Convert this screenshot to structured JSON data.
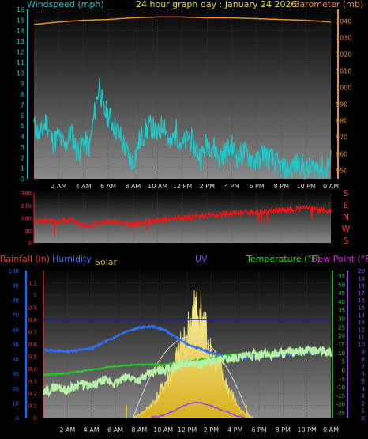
{
  "header": {
    "windspeed_label": "Windspeed (mph)",
    "title": "24 hour graph day : January 24 2026",
    "barometer_label": "Barometer (mb)"
  },
  "bottom_header": {
    "rainfall_label": "Rainfall (in)",
    "humidity_label": "Humidity",
    "solar_label": "Solar",
    "uv_label": "UV",
    "temperature_label": "Temperature (°F)",
    "dewpoint_label": "Dew Point (°F)"
  },
  "compass": [
    "S",
    "E",
    "N",
    "W",
    "S"
  ],
  "colors": {
    "wind": "#1ec8c8",
    "barometer": "#e8902a",
    "direction": "#ff1010",
    "humidity": "#3070ff",
    "rain": "#2020a0",
    "temperature": "#20d020",
    "dewpoint": "#d020d0",
    "solar": "#f0e070",
    "uv": "#9040ff",
    "wind_axis": "#00c8c8",
    "rain_axis": "#2060ff",
    "temp_axis": "#20e020",
    "uv_axis": "#a040ff"
  },
  "chart_data": [
    {
      "type": "line",
      "name_key": "wind-barometer",
      "x_ticks": [
        "2 AM",
        "4 AM",
        "6 AM",
        "8 AM",
        "10 AM",
        "12 PM",
        "2 PM",
        "4 PM",
        "6 PM",
        "8 PM",
        "10 PM",
        "0 AM"
      ],
      "y_left_ticks": [
        "0",
        "1",
        "2",
        "3",
        "4",
        "5",
        "6",
        "7",
        "8",
        "9",
        "10",
        "11",
        "12",
        "13",
        "14",
        "15",
        "16"
      ],
      "y_right_ticks": [
        "950",
        "960",
        "970",
        "980",
        "990",
        "1000",
        "1010",
        "1020",
        "1030",
        "1040"
      ],
      "ylim_left": [
        0,
        16
      ],
      "ylim_right": [
        945,
        1047
      ],
      "series": [
        {
          "key": "windspeed",
          "x": [
            0,
            0.5,
            1,
            1.5,
            2,
            2.5,
            3,
            3.5,
            4,
            4.5,
            5,
            5.3,
            5.6,
            6,
            6.5,
            7,
            7.5,
            8,
            8.5,
            9,
            9.5,
            10,
            10.5,
            11,
            11.5,
            12,
            12.5,
            13,
            13.5,
            14,
            14.5,
            15,
            15.5,
            16,
            16.5,
            17,
            17.5,
            18,
            18.5,
            19,
            19.5,
            20,
            20.5,
            21,
            21.5,
            22,
            22.5,
            23,
            23.5,
            24
          ],
          "values": [
            5,
            4,
            5.5,
            3.5,
            4,
            3,
            4.5,
            2.5,
            3.5,
            3,
            7,
            9,
            6.5,
            6,
            5,
            4,
            2.5,
            1.5,
            3.5,
            4.5,
            5,
            4,
            5.5,
            3,
            4.5,
            3,
            4,
            3,
            2,
            3.5,
            3,
            2,
            2.5,
            3,
            2,
            2.5,
            2,
            1.5,
            2.5,
            2,
            1.5,
            1,
            0.8,
            1.2,
            1.5,
            0.8,
            1,
            1.2,
            0.7,
            1.8
          ]
        },
        {
          "key": "barometer",
          "x": [
            0,
            2,
            4,
            6,
            8,
            10,
            12,
            14,
            16,
            18,
            20,
            22,
            24
          ],
          "values": [
            1038,
            1039.5,
            1040.5,
            1041,
            1042,
            1042.5,
            1042.5,
            1042,
            1042,
            1041.5,
            1041,
            1040.5,
            1039.5
          ]
        }
      ]
    },
    {
      "type": "scatter",
      "name_key": "wind-direction",
      "y_ticks": [
        "360",
        "270",
        "180",
        "90",
        "0"
      ],
      "ylim": [
        0,
        360
      ],
      "series": [
        {
          "key": "direction",
          "x": [
            0,
            1,
            2,
            3,
            4,
            5,
            6,
            7,
            8,
            9,
            10,
            11,
            12,
            13,
            14,
            15,
            16,
            17,
            18,
            19,
            20,
            21,
            22,
            23,
            24
          ],
          "values": [
            150,
            160,
            150,
            165,
            130,
            140,
            150,
            145,
            130,
            150,
            160,
            175,
            180,
            190,
            200,
            205,
            210,
            215,
            220,
            225,
            235,
            240,
            250,
            235,
            230
          ]
        }
      ]
    },
    {
      "type": "line",
      "name_key": "multi",
      "y_rain_ticks": [
        "0",
        "0.1",
        "0.2",
        "0.3",
        "0.4",
        "0.5",
        "0.6",
        "0.7",
        "0.8",
        "0.9",
        "1",
        "1.1"
      ],
      "y_humidity_ticks": [
        "0",
        "10",
        "20",
        "30",
        "40",
        "50",
        "60",
        "70",
        "80",
        "90",
        "100"
      ],
      "y_temp_ticks": [
        "-25",
        "-20",
        "-15",
        "-10",
        "-5",
        "0",
        "5",
        "10",
        "15",
        "20",
        "25",
        "30",
        "35",
        "40",
        "45",
        "50",
        "55"
      ],
      "y_uv_ticks": [
        "0",
        "1",
        "2",
        "3",
        "4",
        "5",
        "6",
        "7",
        "8",
        "9",
        "10",
        "11",
        "12",
        "13",
        "14",
        "15",
        "16",
        "17",
        "18",
        "19",
        "20"
      ],
      "ylim_rain": [
        0,
        1.2
      ],
      "ylim_temp": [
        -28,
        58
      ],
      "series": [
        {
          "key": "rainfall",
          "x": [
            0,
            24
          ],
          "values": [
            0.8,
            0.8
          ]
        },
        {
          "key": "humidity",
          "x": [
            0,
            2,
            4,
            6,
            7,
            8,
            9,
            10,
            11,
            12,
            13,
            14,
            15,
            16,
            17,
            18,
            19,
            20,
            21,
            22,
            23,
            24
          ],
          "values": [
            46,
            45,
            47,
            55,
            59,
            61,
            62,
            60,
            55,
            50,
            47,
            44,
            42,
            40,
            41,
            42,
            42,
            43,
            43,
            44,
            44,
            45
          ]
        },
        {
          "key": "temperature",
          "x": [
            0,
            2,
            4,
            6,
            8,
            10,
            12,
            14,
            16,
            18,
            20,
            22,
            24
          ],
          "values": [
            -3,
            -2,
            0,
            2,
            3,
            3,
            5,
            7,
            9,
            10,
            10,
            11,
            11
          ]
        },
        {
          "key": "dewpoint",
          "x": [
            0,
            1,
            2,
            3,
            4,
            5,
            6,
            7,
            8,
            9,
            10,
            11,
            12,
            13,
            14,
            15,
            16,
            17,
            18,
            19,
            20,
            21,
            22,
            23,
            24
          ],
          "values": [
            -14,
            -10,
            -12,
            -8,
            -10,
            -6,
            -8,
            -4,
            -6,
            -2,
            0,
            2,
            4,
            3,
            5,
            6,
            7,
            8,
            9,
            9,
            10,
            10,
            11,
            11,
            10
          ]
        },
        {
          "key": "solar",
          "x": [
            7.5,
            8.5,
            9.5,
            10.5,
            11,
            11.5,
            12,
            12.5,
            13,
            13.5,
            14,
            14.5,
            15,
            15.5,
            16.5,
            17.5
          ],
          "values": [
            0,
            1,
            3,
            6,
            8,
            10,
            12,
            15,
            16,
            13,
            10,
            8,
            6,
            4,
            1,
            0
          ]
        },
        {
          "key": "uv",
          "x": [
            9,
            10,
            11,
            12,
            13,
            14,
            15,
            16,
            16.8
          ],
          "values": [
            0,
            0.3,
            1,
            1.8,
            2.1,
            1.6,
            1,
            0.3,
            0
          ]
        }
      ]
    }
  ]
}
